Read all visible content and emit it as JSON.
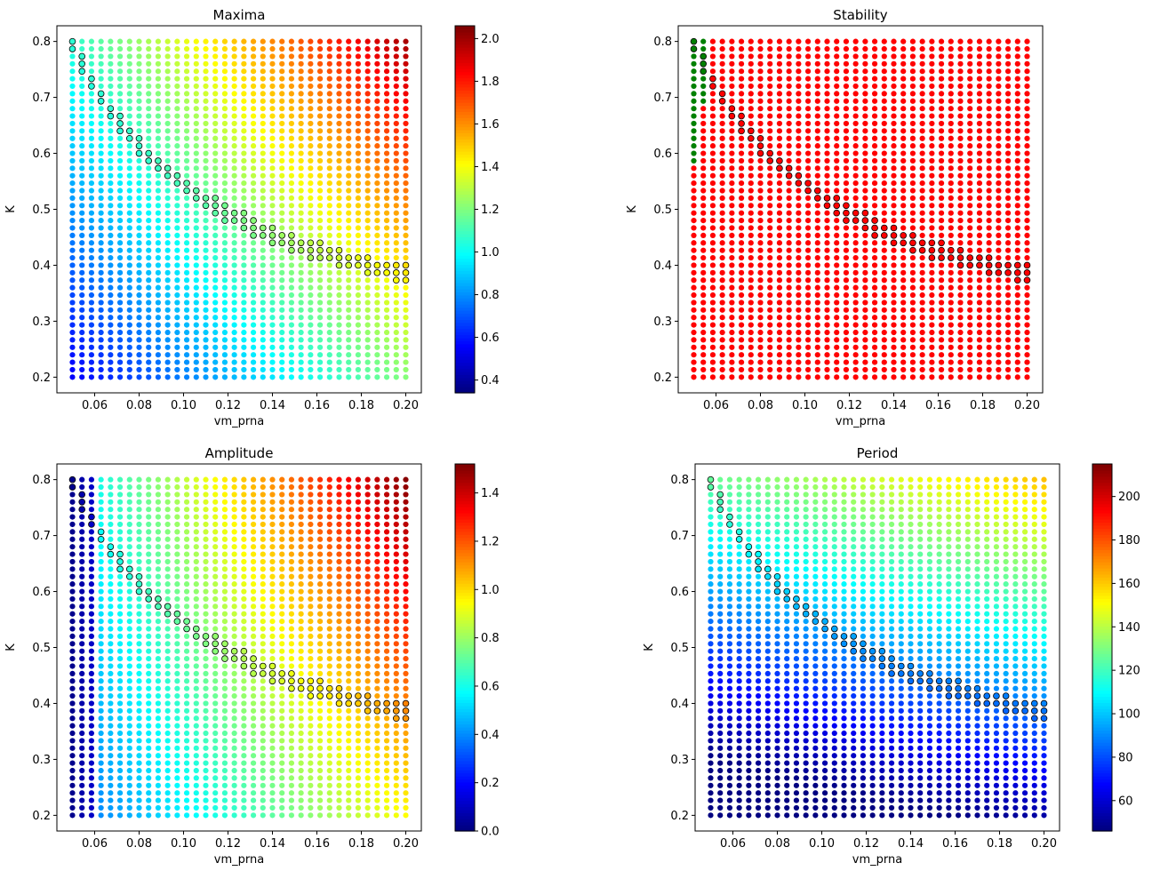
{
  "figure": {
    "colors": {
      "stable_green": "#008000",
      "unstable_red": "#ff0000",
      "colormap": "jet"
    }
  },
  "chart_data": [
    {
      "type": "scatter",
      "title": "Maxima",
      "xlabel": "vm_prna",
      "ylabel": "K",
      "xlim": [
        0.043,
        0.207
      ],
      "ylim": [
        0.172,
        0.828
      ],
      "x_grid": {
        "start": 0.05,
        "stop": 0.2,
        "count": 36
      },
      "y_grid": {
        "start": 0.2,
        "stop": 0.8,
        "count": 46
      },
      "xticks": [
        "0.06",
        "0.08",
        "0.10",
        "0.12",
        "0.14",
        "0.16",
        "0.18",
        "0.20"
      ],
      "yticks": [
        "0.2",
        "0.3",
        "0.4",
        "0.5",
        "0.6",
        "0.7",
        "0.8"
      ],
      "colorbar": {
        "min": 0.34,
        "max": 2.06,
        "ticks": [
          "0.4",
          "0.6",
          "0.8",
          "1.0",
          "1.2",
          "1.4",
          "1.6",
          "1.8",
          "2.0"
        ]
      },
      "value_model": {
        "base": 0.55,
        "x_coef": 4.4,
        "y_coef": 0.85,
        "xy_coef": 3.0
      },
      "highlight_band": {
        "description": "outlined markers along boundary",
        "width": 2
      }
    },
    {
      "type": "scatter",
      "title": "Stability",
      "xlabel": "vm_prna",
      "ylabel": "K",
      "xlim": [
        0.043,
        0.207
      ],
      "ylim": [
        0.172,
        0.828
      ],
      "x_grid": {
        "start": 0.05,
        "stop": 0.2,
        "count": 36
      },
      "y_grid": {
        "start": 0.2,
        "stop": 0.8,
        "count": 46
      },
      "xticks": [
        "0.06",
        "0.08",
        "0.10",
        "0.12",
        "0.14",
        "0.16",
        "0.18",
        "0.20"
      ],
      "yticks": [
        "0.2",
        "0.3",
        "0.4",
        "0.5",
        "0.6",
        "0.7",
        "0.8"
      ],
      "categories": [
        "stable",
        "unstable"
      ],
      "stable_region": [
        {
          "x": 0.05,
          "y_min": 0.58,
          "y_max": 0.8
        },
        {
          "x": 0.0543,
          "y_min": 0.69,
          "y_max": 0.8
        }
      ],
      "highlight_band": {
        "description": "outlined markers along boundary",
        "width": 2
      }
    },
    {
      "type": "scatter",
      "title": "Amplitude",
      "xlabel": "vm_prna",
      "ylabel": "K",
      "xlim": [
        0.043,
        0.207
      ],
      "ylim": [
        0.172,
        0.828
      ],
      "x_grid": {
        "start": 0.05,
        "stop": 0.2,
        "count": 36
      },
      "y_grid": {
        "start": 0.2,
        "stop": 0.8,
        "count": 46
      },
      "xticks": [
        "0.06",
        "0.08",
        "0.10",
        "0.12",
        "0.14",
        "0.16",
        "0.18",
        "0.20"
      ],
      "yticks": [
        "0.2",
        "0.3",
        "0.4",
        "0.5",
        "0.6",
        "0.7",
        "0.8"
      ],
      "colorbar": {
        "min": 0.0,
        "max": 1.52,
        "ticks": [
          "0.0",
          "0.2",
          "0.4",
          "0.6",
          "0.8",
          "1.0",
          "1.2",
          "1.4"
        ]
      },
      "value_model": {
        "base": 0.35,
        "x_coef": 4.0,
        "y_coef": 0.3,
        "xy_coef": 4.2
      },
      "highlight_band": {
        "description": "outlined markers along boundary",
        "width": 2
      }
    },
    {
      "type": "scatter",
      "title": "Period",
      "xlabel": "vm_prna",
      "ylabel": "K",
      "xlim": [
        0.043,
        0.207
      ],
      "ylim": [
        0.172,
        0.828
      ],
      "x_grid": {
        "start": 0.05,
        "stop": 0.2,
        "count": 36
      },
      "y_grid": {
        "start": 0.2,
        "stop": 0.8,
        "count": 46
      },
      "xticks": [
        "0.06",
        "0.08",
        "0.10",
        "0.12",
        "0.14",
        "0.16",
        "0.18",
        "0.20"
      ],
      "yticks": [
        "0.2",
        "0.3",
        "0.4",
        "0.5",
        "0.6",
        "0.7",
        "0.8"
      ],
      "colorbar": {
        "min": 46,
        "max": 215,
        "ticks": [
          "60",
          "80",
          "100",
          "120",
          "140",
          "160",
          "180",
          "200"
        ]
      },
      "value_model": {
        "base": 30,
        "x_coef": 150,
        "y_coef": 160,
        "xy_coef": 150
      },
      "highlight_band": {
        "description": "outlined markers along boundary",
        "width": 2
      }
    }
  ]
}
